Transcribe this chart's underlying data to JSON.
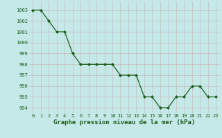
{
  "x": [
    0,
    1,
    2,
    3,
    4,
    5,
    6,
    7,
    8,
    9,
    10,
    11,
    12,
    13,
    14,
    15,
    16,
    17,
    18,
    19,
    20,
    21,
    22,
    23
  ],
  "y": [
    1003,
    1003,
    1002,
    1001,
    1001,
    999,
    998,
    998,
    998,
    998,
    998,
    997,
    997,
    997,
    995,
    995,
    994,
    994,
    995,
    995,
    996,
    996,
    995,
    995
  ],
  "line_color": "#1a5c1a",
  "marker": "D",
  "marker_size": 2.0,
  "linewidth": 0.9,
  "bg_color": "#c5e8e8",
  "grid_color": "#b0c8c8",
  "grid_color_major": "#aabbbb",
  "xlabel": "Graphe pression niveau de la mer (hPa)",
  "xlabel_fontsize": 6.5,
  "xlabel_bold": true,
  "ylim": [
    993.5,
    1003.8
  ],
  "xlim": [
    -0.5,
    23.5
  ],
  "yticks": [
    994,
    995,
    996,
    997,
    998,
    999,
    1000,
    1001,
    1002,
    1003
  ],
  "xticks": [
    0,
    1,
    2,
    3,
    4,
    5,
    6,
    7,
    8,
    9,
    10,
    11,
    12,
    13,
    14,
    15,
    16,
    17,
    18,
    19,
    20,
    21,
    22,
    23
  ],
  "tick_fontsize": 5.0,
  "tick_color": "#1a5c1a"
}
